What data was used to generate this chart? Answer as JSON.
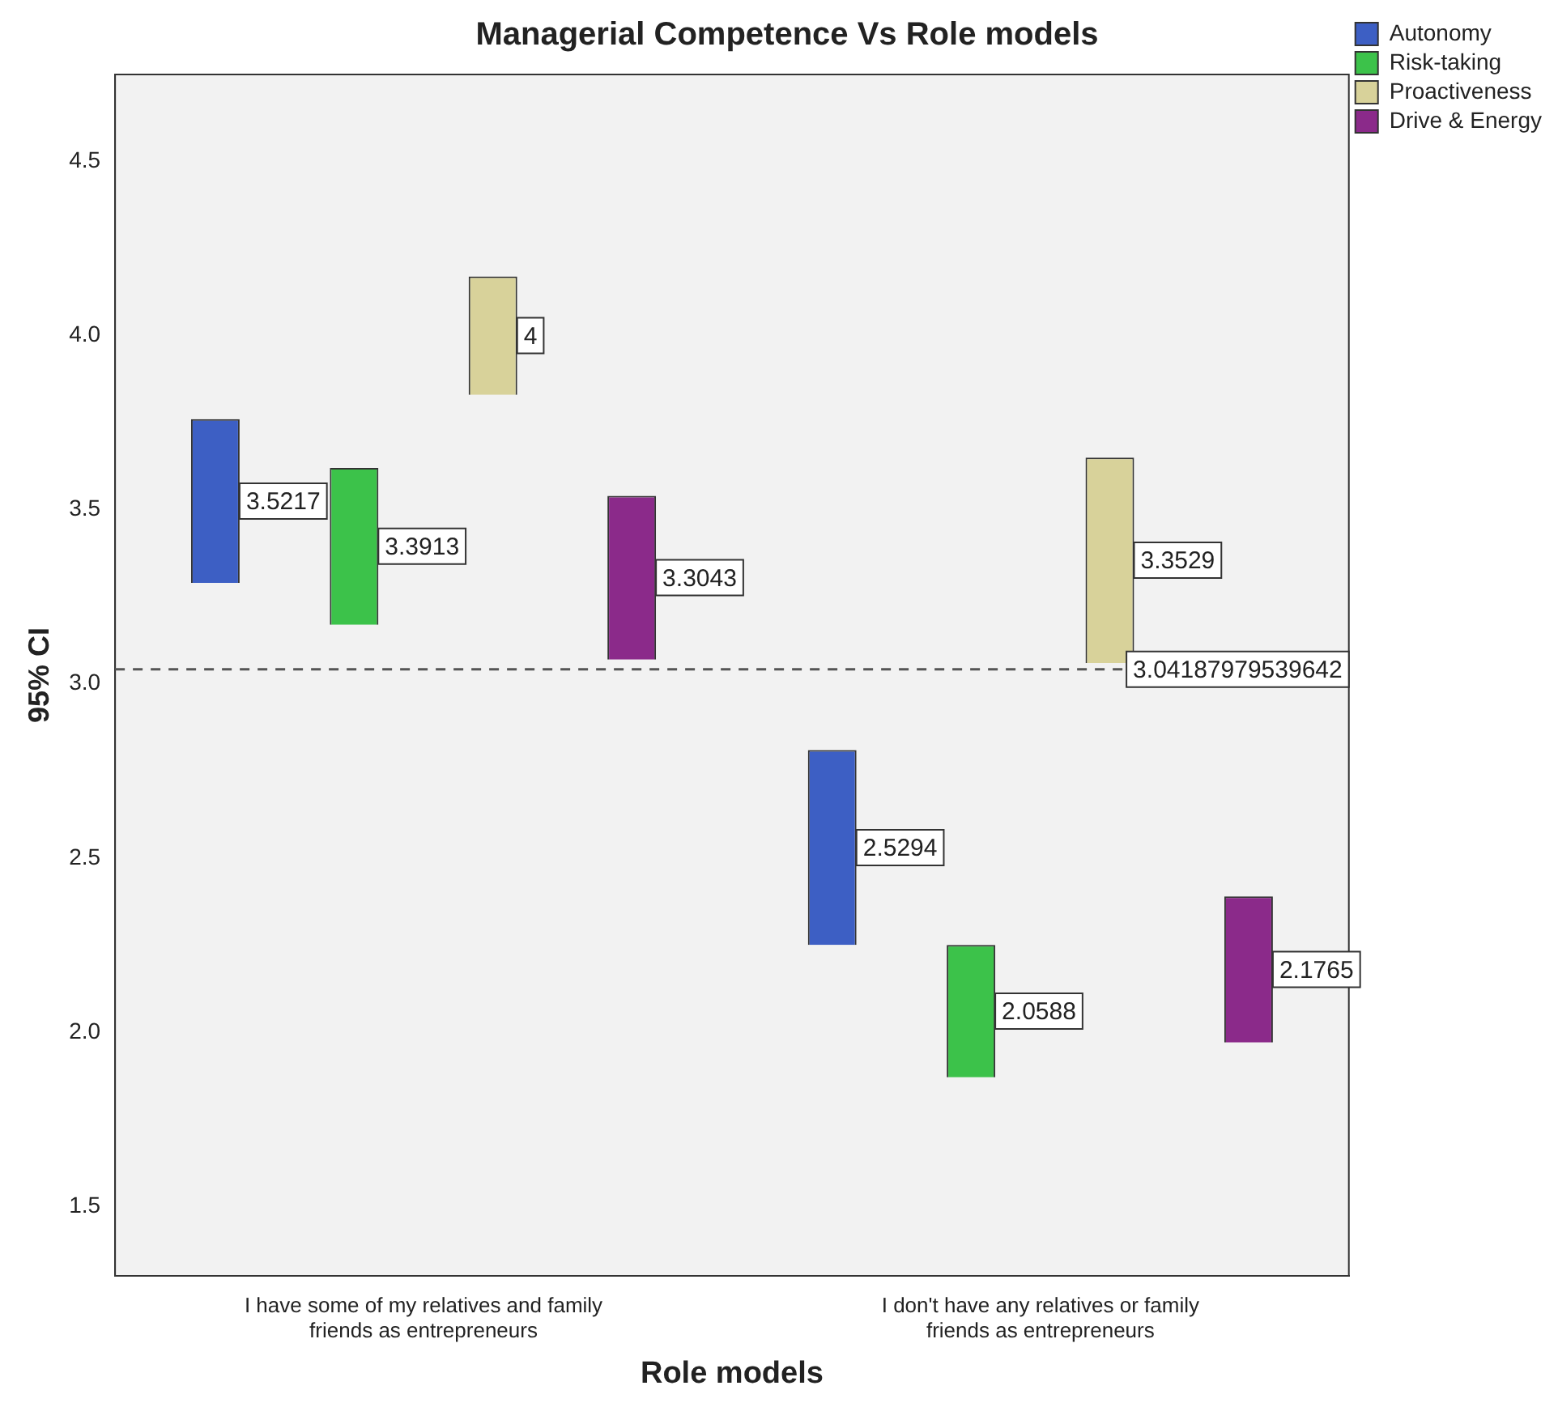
{
  "chart_data": {
    "type": "bar",
    "title": "Managerial Competence Vs Role models",
    "xlabel": "Role models",
    "ylabel": "95% CI",
    "categories": [
      "I have some of my relatives and family friends as entrepreneurs",
      "I don't have any relatives or family friends as entrepreneurs"
    ],
    "series": [
      {
        "name": "Autonomy",
        "color": "#3d5fc4",
        "base": [
          3.29,
          2.25
        ],
        "values": [
          0.47,
          0.56
        ]
      },
      {
        "name": "Risk-taking",
        "color": "#3cc24a",
        "base": [
          3.17,
          1.87
        ],
        "values": [
          0.45,
          0.38
        ]
      },
      {
        "name": "Proactiveness",
        "color": "#d8d29a",
        "base": [
          3.83,
          3.06
        ],
        "values": [
          0.34,
          0.59
        ]
      },
      {
        "name": "Drive & Energy",
        "color": "#8b2a8a",
        "base": [
          3.07,
          1.97
        ],
        "values": [
          0.47,
          0.42
        ]
      }
    ],
    "annotations": [
      "3.5217",
      "2.5294",
      "3.3913",
      "2.0588",
      "4",
      "3.3529",
      "3.3043",
      "2.1765"
    ],
    "ylim": [
      1.3,
      4.75
    ],
    "yticks": [
      {
        "value": 1.5,
        "label": "1.5"
      },
      {
        "value": 2,
        "label": "2.0"
      },
      {
        "value": 2.5,
        "label": "2.5"
      },
      {
        "value": 3,
        "label": "3.0"
      },
      {
        "value": 3.5,
        "label": "3.5"
      },
      {
        "value": 4,
        "label": "4.0"
      },
      {
        "value": 4.5,
        "label": "4.5"
      }
    ],
    "ref_lines": [
      {
        "axis": "y",
        "value": 3.04187979539642,
        "label": "3.04187979539642",
        "line_style": "dashed"
      }
    ],
    "grid": false,
    "legend": "top right"
  }
}
